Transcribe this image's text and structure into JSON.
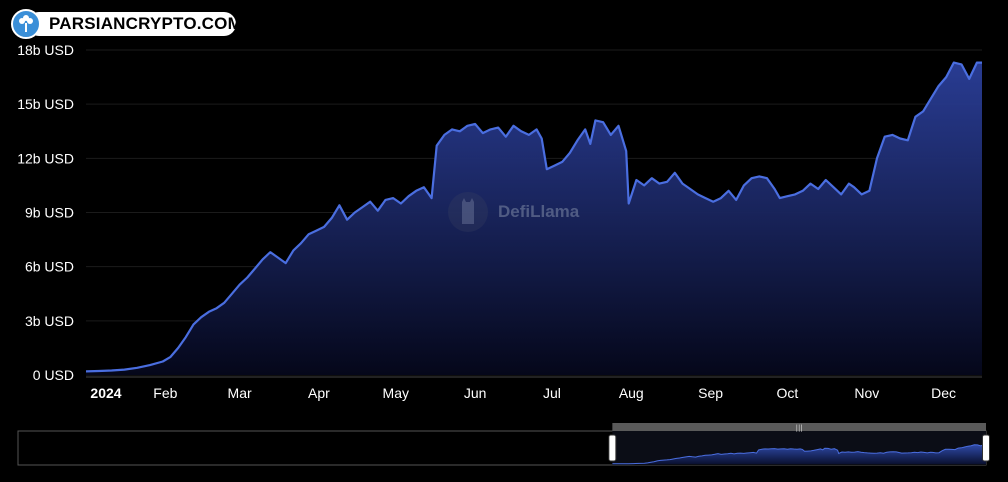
{
  "logo": {
    "text": "PARSIANCRYPTO.COM"
  },
  "watermark": {
    "text": "DefiLlama"
  },
  "colors": {
    "line": "#4a6ee0",
    "fill_top": "#2b3f9a",
    "fill_bottom": "#000000",
    "grid": "#1b1b1b",
    "axis_text": "#ffffff"
  },
  "chart_data": {
    "type": "area",
    "title": "",
    "xlabel": "",
    "ylabel": "",
    "ylim": [
      0,
      18
    ],
    "y_ticks": [
      "0 USD",
      "3b USD",
      "6b USD",
      "9b USD",
      "12b USD",
      "15b USD",
      "18b USD"
    ],
    "y_tick_values": [
      0,
      3,
      6,
      9,
      12,
      15,
      18
    ],
    "x_ticks": [
      "2024",
      "Feb",
      "Mar",
      "Apr",
      "May",
      "Jun",
      "Jul",
      "Aug",
      "Sep",
      "Oct",
      "Nov",
      "Dec"
    ],
    "x_tick_days": [
      0,
      31,
      60,
      91,
      121,
      152,
      182,
      213,
      244,
      274,
      305,
      335
    ],
    "xlim_days": [
      0,
      350
    ],
    "series": [
      {
        "name": "",
        "unit": "b USD",
        "points": [
          [
            0,
            0.2
          ],
          [
            5,
            0.22
          ],
          [
            10,
            0.25
          ],
          [
            15,
            0.3
          ],
          [
            20,
            0.4
          ],
          [
            25,
            0.55
          ],
          [
            30,
            0.75
          ],
          [
            33,
            1.0
          ],
          [
            36,
            1.5
          ],
          [
            39,
            2.1
          ],
          [
            42,
            2.8
          ],
          [
            45,
            3.2
          ],
          [
            48,
            3.5
          ],
          [
            51,
            3.7
          ],
          [
            54,
            4.0
          ],
          [
            57,
            4.5
          ],
          [
            60,
            5.0
          ],
          [
            63,
            5.4
          ],
          [
            66,
            5.9
          ],
          [
            69,
            6.4
          ],
          [
            72,
            6.8
          ],
          [
            75,
            6.5
          ],
          [
            78,
            6.2
          ],
          [
            81,
            6.9
          ],
          [
            84,
            7.3
          ],
          [
            87,
            7.8
          ],
          [
            90,
            8.0
          ],
          [
            93,
            8.2
          ],
          [
            96,
            8.7
          ],
          [
            99,
            9.4
          ],
          [
            102,
            8.6
          ],
          [
            105,
            9.0
          ],
          [
            108,
            9.3
          ],
          [
            111,
            9.6
          ],
          [
            114,
            9.1
          ],
          [
            117,
            9.7
          ],
          [
            120,
            9.8
          ],
          [
            123,
            9.5
          ],
          [
            126,
            9.9
          ],
          [
            129,
            10.2
          ],
          [
            132,
            10.4
          ],
          [
            135,
            9.8
          ],
          [
            137,
            12.7
          ],
          [
            140,
            13.3
          ],
          [
            143,
            13.6
          ],
          [
            146,
            13.5
          ],
          [
            149,
            13.8
          ],
          [
            152,
            13.9
          ],
          [
            155,
            13.4
          ],
          [
            158,
            13.6
          ],
          [
            161,
            13.7
          ],
          [
            164,
            13.2
          ],
          [
            167,
            13.8
          ],
          [
            170,
            13.5
          ],
          [
            173,
            13.3
          ],
          [
            176,
            13.6
          ],
          [
            178,
            13.1
          ],
          [
            180,
            11.4
          ],
          [
            183,
            11.6
          ],
          [
            186,
            11.8
          ],
          [
            189,
            12.3
          ],
          [
            192,
            13.0
          ],
          [
            195,
            13.6
          ],
          [
            197,
            12.8
          ],
          [
            199,
            14.1
          ],
          [
            202,
            14.0
          ],
          [
            205,
            13.3
          ],
          [
            208,
            13.8
          ],
          [
            211,
            12.4
          ],
          [
            212,
            9.5
          ],
          [
            215,
            10.8
          ],
          [
            218,
            10.5
          ],
          [
            221,
            10.9
          ],
          [
            224,
            10.6
          ],
          [
            227,
            10.7
          ],
          [
            230,
            11.2
          ],
          [
            233,
            10.6
          ],
          [
            236,
            10.3
          ],
          [
            239,
            10.0
          ],
          [
            242,
            9.8
          ],
          [
            245,
            9.6
          ],
          [
            248,
            9.8
          ],
          [
            251,
            10.2
          ],
          [
            254,
            9.7
          ],
          [
            257,
            10.5
          ],
          [
            260,
            10.9
          ],
          [
            263,
            11.0
          ],
          [
            266,
            10.9
          ],
          [
            269,
            10.3
          ],
          [
            271,
            9.8
          ],
          [
            274,
            9.9
          ],
          [
            277,
            10.0
          ],
          [
            280,
            10.2
          ],
          [
            283,
            10.6
          ],
          [
            286,
            10.3
          ],
          [
            289,
            10.8
          ],
          [
            292,
            10.4
          ],
          [
            295,
            10.0
          ],
          [
            298,
            10.6
          ],
          [
            300,
            10.4
          ],
          [
            303,
            10.0
          ],
          [
            306,
            10.2
          ],
          [
            309,
            12.0
          ],
          [
            312,
            13.2
          ],
          [
            315,
            13.3
          ],
          [
            318,
            13.1
          ],
          [
            321,
            13.0
          ],
          [
            324,
            14.3
          ],
          [
            327,
            14.6
          ],
          [
            330,
            15.3
          ],
          [
            333,
            16.0
          ],
          [
            336,
            16.5
          ],
          [
            339,
            17.3
          ],
          [
            342,
            17.2
          ],
          [
            345,
            16.4
          ],
          [
            348,
            17.3
          ],
          [
            350,
            17.3
          ]
        ]
      }
    ],
    "range_selector": {
      "start_fraction": 0.614,
      "end_fraction": 1.0
    }
  }
}
